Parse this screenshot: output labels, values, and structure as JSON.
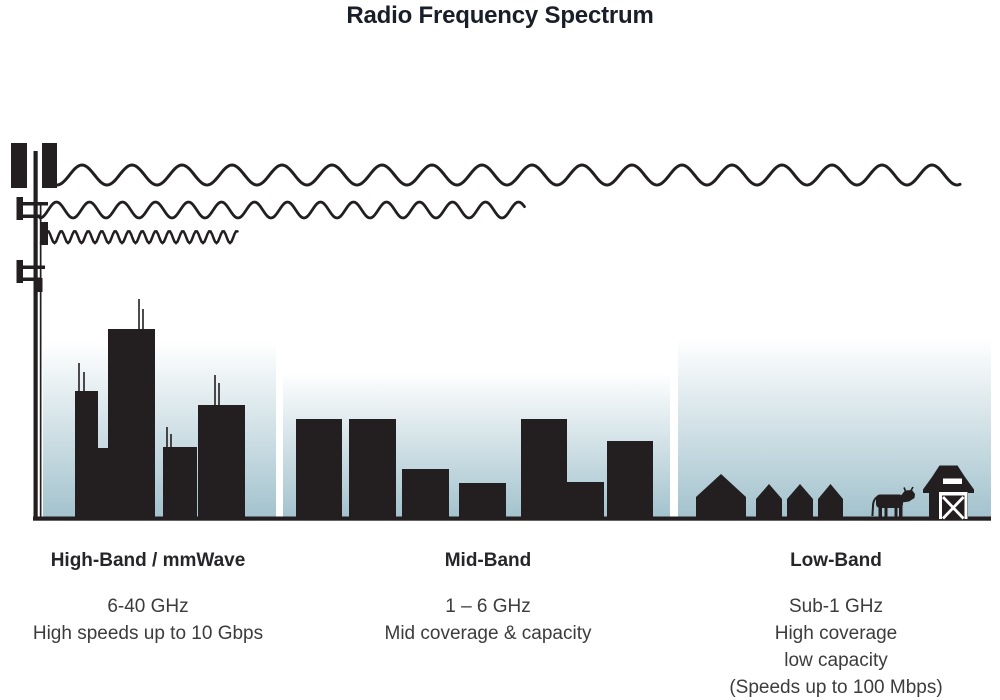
{
  "title": "Radio Frequency Spectrum",
  "bands": [
    {
      "name": "High-Band / mmWave",
      "lines": [
        "6-40 GHz",
        "High speeds up to 10 Gbps"
      ]
    },
    {
      "name": "Mid-Band",
      "lines": [
        "1 – 6 GHz",
        "Mid coverage & capacity"
      ]
    },
    {
      "name": "Low-Band",
      "lines": [
        "Sub-1 GHz",
        "High coverage",
        "low capacity",
        "(Speeds up to 100 Mbps)"
      ]
    }
  ],
  "icons": {
    "cell-tower-icon": "black antenna mast silhouette",
    "radio-wave-long-icon": "long-wavelength sine wave reaching far",
    "radio-wave-medium-icon": "medium-wavelength sine wave reaching mid distance",
    "radio-wave-short-icon": "short-wavelength sine wave reaching short distance",
    "city-skyline-icon": "downtown buildings with rooftop antennas silhouette",
    "suburb-town-icon": "rectangular low-rise buildings silhouette",
    "house-icon": "small pitched-roof house silhouette",
    "cow-icon": "cow silhouette",
    "barn-icon": "barn with cross-braced door silhouette"
  },
  "colors": {
    "ink": "#231f20",
    "title": "#1a1e28",
    "heading": "#26262a",
    "text": "#3c3c3c",
    "sky_top": "#ffffff",
    "sky_bottom": "#a2c2cd"
  }
}
